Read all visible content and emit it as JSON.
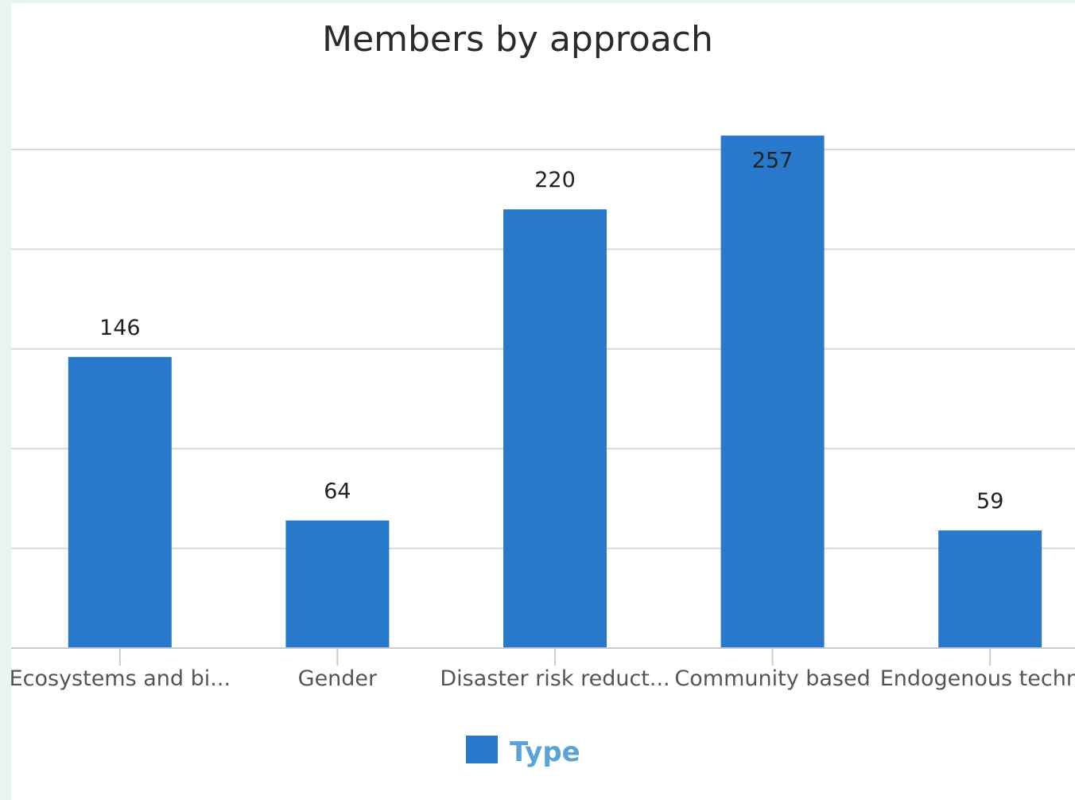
{
  "chart_data": {
    "type": "bar",
    "title": "Members by approach",
    "categories": [
      "Ecosystems and bi...",
      "Gender",
      "Disaster risk reduct...",
      "Community based",
      "Endogenous techn..."
    ],
    "series": [
      {
        "name": "Type",
        "values": [
          146,
          64,
          220,
          257,
          59
        ],
        "color": "#2878cc"
      }
    ],
    "ylim": [
      0,
      250
    ],
    "ytick_step": 50,
    "grid": true,
    "legend_position": "bottom-center",
    "legend_text_color": "#5aa3d8",
    "data_labels": true
  }
}
